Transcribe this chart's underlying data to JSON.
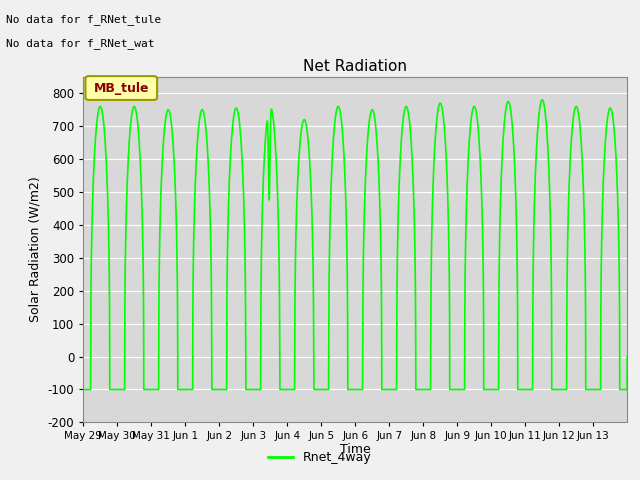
{
  "title": "Net Radiation",
  "ylabel": "Solar Radiation (W/m2)",
  "xlabel": "Time",
  "ylim": [
    -200,
    850
  ],
  "bg_color": "#d8d8d8",
  "fig_color": "#f0f0f0",
  "line_color": "#00ff00",
  "line_width": 1.2,
  "annotation1": "No data for f_RNet_tule",
  "annotation2": "No data for f_RNet_wat",
  "box_label": "MB_tule",
  "legend_label": "Rnet_4way",
  "xtick_labels": [
    "May 29",
    "May 30",
    "May 31",
    "Jun 1",
    "Jun 2",
    "Jun 3",
    "Jun 4",
    "Jun 5",
    "Jun 6",
    "Jun 7",
    "Jun 8",
    "Jun 9",
    "Jun 10",
    "Jun 11",
    "Jun 12",
    "Jun 13"
  ],
  "ytick_vals": [
    -200,
    -100,
    0,
    100,
    200,
    300,
    400,
    500,
    600,
    700,
    800
  ],
  "n_days": 16,
  "peak_values": [
    760,
    760,
    750,
    750,
    755,
    760,
    720,
    760,
    750,
    760,
    770,
    760,
    775,
    780,
    760,
    755
  ],
  "trough_value": -100,
  "cloudy_day": 5
}
